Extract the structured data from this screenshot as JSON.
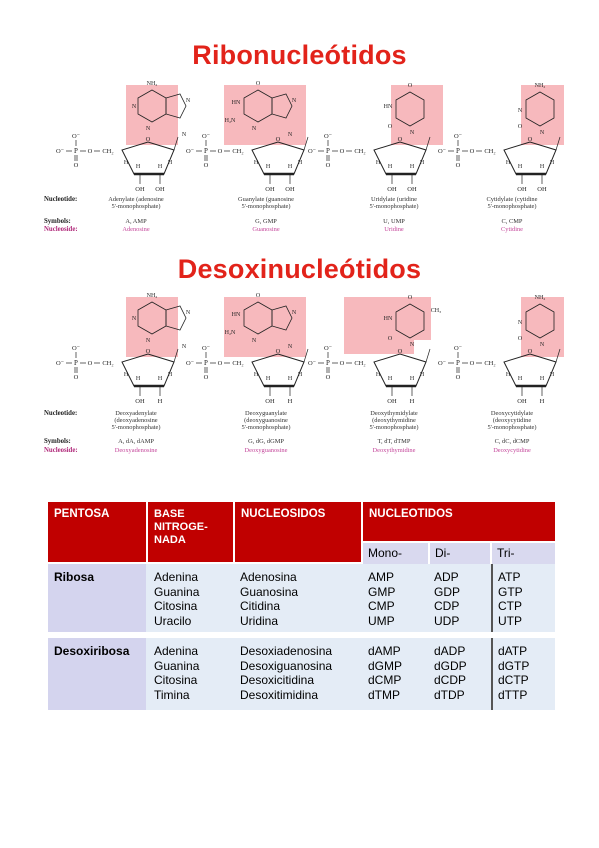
{
  "section1": {
    "title": "Ribonucleótidos",
    "row_labels": {
      "nucleotide": "Nucleotide:",
      "symbols": "Symbols:",
      "nucleoside": "Nucleoside:"
    },
    "columns": [
      {
        "nucleotide": [
          "Adenylate (adenosine",
          "5'-monophosphate)"
        ],
        "symbols": "A, AMP",
        "nucleoside": "Adenosine"
      },
      {
        "nucleotide": [
          "Guanylate (guanosine",
          "5'-monophosphate)"
        ],
        "symbols": "G, GMP",
        "nucleoside": "Guanosine"
      },
      {
        "nucleotide": [
          "Uridylate (uridine",
          "5'-monophosphate)"
        ],
        "symbols": "U, UMP",
        "nucleoside": "Uridine"
      },
      {
        "nucleotide": [
          "Cytidylate (cytidine",
          "5'-monophosphate)"
        ],
        "symbols": "C, CMP",
        "nucleoside": "Cytidine"
      }
    ]
  },
  "section2": {
    "title": "Desoxinucleótidos",
    "row_labels": {
      "nucleotide": "Nucleotide:",
      "symbols": "Symbols:",
      "nucleoside": "Nucleoside:"
    },
    "columns": [
      {
        "nucleotide": [
          "Deoxyadenylate",
          "(deoxyadenosine",
          "5'-monophosphate)"
        ],
        "symbols": "A, dA, dAMP",
        "nucleoside": "Deoxyadenosine"
      },
      {
        "nucleotide": [
          "Deoxyguanylate",
          "(deoxyguanosine",
          "5'-monophosphate)"
        ],
        "symbols": "G, dG, dGMP",
        "nucleoside": "Deoxyguanosine"
      },
      {
        "nucleotide": [
          "Deoxythymidylate",
          "(deoxythymidine",
          "5'-monophosphate)"
        ],
        "symbols": "T, dT, dTMP",
        "nucleoside": "Deoxythymidine"
      },
      {
        "nucleotide": [
          "Deoxycytidylate",
          "(deoxycytidine",
          "5'-monophosphate)"
        ],
        "symbols": "C, dC, dCMP",
        "nucleoside": "Deoxycytidine"
      }
    ]
  },
  "chem": {
    "o": "O",
    "o_minus": "O⁻",
    "p": "P",
    "ch2": "CH₂",
    "h": "H",
    "oh": "OH",
    "n": "N",
    "nh2": "NH₂",
    "hn": "HN",
    "h2n": "H₂N",
    "ch3": "CH₃"
  },
  "table": {
    "headers": {
      "pentosa": "PENTOSA",
      "base_l1": "BASE",
      "base_l2": "NITROGE-",
      "base_l3": "NADA",
      "nucleosidos": "NUCLEOSIDOS",
      "nucleotidos": "NUCLEOTIDOS"
    },
    "subheaders": {
      "mono": "Mono-",
      "di": "Di-",
      "tri": "Tri-"
    },
    "groups": [
      {
        "pentosa": "Ribosa",
        "rows": [
          {
            "base": "Adenina",
            "nucleosido": "Adenosina",
            "mono": "AMP",
            "di": "ADP",
            "tri": "ATP"
          },
          {
            "base": "Guanina",
            "nucleosido": "Guanosina",
            "mono": "GMP",
            "di": "GDP",
            "tri": "GTP"
          },
          {
            "base": "Citosina",
            "nucleosido": "Citidina",
            "mono": "CMP",
            "di": "CDP",
            "tri": "CTP"
          },
          {
            "base": "Uracilo",
            "nucleosido": "Uridina",
            "mono": "UMP",
            "di": "UDP",
            "tri": "UTP"
          }
        ]
      },
      {
        "pentosa": "Desoxiribosa",
        "rows": [
          {
            "base": "Adenina",
            "nucleosido": "Desoxiadenosina",
            "mono": "dAMP",
            "di": "dADP",
            "tri": "dATP"
          },
          {
            "base": "Guanina",
            "nucleosido": "Desoxiguanosina",
            "mono": "dGMP",
            "di": "dGDP",
            "tri": "dGTP"
          },
          {
            "base": "Citosina",
            "nucleosido": "Desoxicitidina",
            "mono": "dCMP",
            "di": "dCDP",
            "tri": "dCTP"
          },
          {
            "base": "Timina",
            "nucleosido": "Desoxitimidina",
            "mono": "dTMP",
            "di": "dTDP",
            "tri": "dTTP"
          }
        ]
      }
    ],
    "colors": {
      "header": "#c00000",
      "subheader": "#d9d9ef",
      "band": "#e4ecf6",
      "pentosa": "#d4d4ee",
      "pink": "#f7b9bd"
    }
  }
}
